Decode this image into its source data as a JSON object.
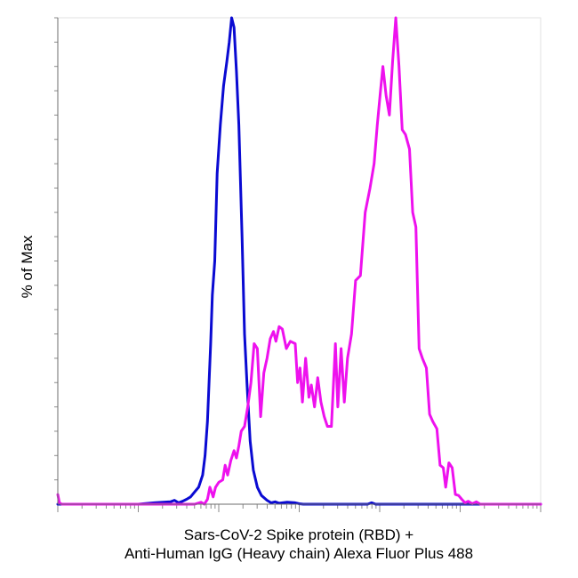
{
  "chart_data": {
    "type": "line",
    "title": "",
    "ylabel": "% of Max",
    "xlabel": [
      "Sars-CoV-2 Spike protein (RBD) +",
      "Anti-Human IgG (Heavy chain) Alexa Fluor Plus 488"
    ],
    "x_scale": "log",
    "x_decades": 6,
    "ylim": [
      0,
      100
    ],
    "grid": false,
    "legend": "none",
    "series": [
      {
        "color": "#0a0ad2",
        "stroke_width": 3,
        "points": [
          [
            0.0,
            0
          ],
          [
            1.0,
            0
          ],
          [
            1.2,
            0.3
          ],
          [
            1.4,
            0.5
          ],
          [
            1.45,
            0.8
          ],
          [
            1.5,
            0.3
          ],
          [
            1.55,
            0.6
          ],
          [
            1.6,
            1.0
          ],
          [
            1.65,
            1.5
          ],
          [
            1.7,
            2.5
          ],
          [
            1.75,
            3.5
          ],
          [
            1.8,
            6.0
          ],
          [
            1.83,
            10.0
          ],
          [
            1.86,
            17.0
          ],
          [
            1.9,
            33.0
          ],
          [
            1.92,
            43.0
          ],
          [
            1.95,
            50.0
          ],
          [
            1.98,
            68.0
          ],
          [
            2.02,
            78.0
          ],
          [
            2.06,
            86.0
          ],
          [
            2.1,
            91.0
          ],
          [
            2.13,
            95.0
          ],
          [
            2.16,
            100.0
          ],
          [
            2.19,
            98.0
          ],
          [
            2.22,
            89.0
          ],
          [
            2.25,
            78.0
          ],
          [
            2.29,
            55.0
          ],
          [
            2.32,
            35.0
          ],
          [
            2.35,
            25.0
          ],
          [
            2.39,
            13.0
          ],
          [
            2.43,
            7.0
          ],
          [
            2.48,
            3.5
          ],
          [
            2.53,
            1.8
          ],
          [
            2.6,
            0.8
          ],
          [
            2.65,
            0.3
          ],
          [
            2.7,
            0.5
          ],
          [
            2.75,
            0.2
          ],
          [
            2.85,
            0.4
          ],
          [
            2.95,
            0.3
          ],
          [
            3.0,
            0.1
          ],
          [
            3.05,
            0
          ],
          [
            3.85,
            0
          ],
          [
            3.9,
            0.3
          ],
          [
            3.95,
            0
          ],
          [
            6.0,
            0
          ]
        ]
      },
      {
        "color": "#ee11ee",
        "stroke_width": 3,
        "points": [
          [
            0.0,
            2.0
          ],
          [
            0.02,
            0.3
          ],
          [
            0.05,
            0
          ],
          [
            1.7,
            0
          ],
          [
            1.78,
            0.4
          ],
          [
            1.82,
            0
          ],
          [
            1.86,
            1.0
          ],
          [
            1.89,
            3.5
          ],
          [
            1.91,
            2.5
          ],
          [
            1.93,
            1.5
          ],
          [
            1.96,
            3.5
          ],
          [
            2.0,
            4.5
          ],
          [
            2.05,
            5.0
          ],
          [
            2.08,
            8.0
          ],
          [
            2.11,
            6.0
          ],
          [
            2.15,
            9.0
          ],
          [
            2.19,
            11.0
          ],
          [
            2.22,
            9.5
          ],
          [
            2.25,
            12.0
          ],
          [
            2.28,
            15.0
          ],
          [
            2.32,
            16.0
          ],
          [
            2.36,
            20.0
          ],
          [
            2.4,
            25.0
          ],
          [
            2.44,
            33.0
          ],
          [
            2.48,
            32.0
          ],
          [
            2.52,
            18.0
          ],
          [
            2.56,
            27.0
          ],
          [
            2.6,
            30.0
          ],
          [
            2.64,
            34.0
          ],
          [
            2.68,
            35.5
          ],
          [
            2.71,
            33.5
          ],
          [
            2.75,
            36.5
          ],
          [
            2.79,
            36.0
          ],
          [
            2.84,
            32.0
          ],
          [
            2.89,
            33.5
          ],
          [
            2.95,
            33.0
          ],
          [
            2.98,
            25.0
          ],
          [
            3.01,
            28.0
          ],
          [
            3.04,
            21.0
          ],
          [
            3.08,
            30.0
          ],
          [
            3.12,
            22.0
          ],
          [
            3.15,
            24.5
          ],
          [
            3.19,
            20.0
          ],
          [
            3.23,
            26.0
          ],
          [
            3.27,
            21.0
          ],
          [
            3.31,
            18.0
          ],
          [
            3.35,
            16.0
          ],
          [
            3.4,
            16.0
          ],
          [
            3.45,
            33.0
          ],
          [
            3.48,
            20.0
          ],
          [
            3.52,
            32.0
          ],
          [
            3.56,
            21.0
          ],
          [
            3.6,
            30.0
          ],
          [
            3.65,
            35.0
          ],
          [
            3.7,
            46.0
          ],
          [
            3.76,
            47.0
          ],
          [
            3.82,
            60.0
          ],
          [
            3.88,
            65.0
          ],
          [
            3.93,
            70.0
          ],
          [
            3.97,
            78.0
          ],
          [
            4.01,
            85.0
          ],
          [
            4.04,
            90.0
          ],
          [
            4.08,
            84.0
          ],
          [
            4.12,
            80.0
          ],
          [
            4.16,
            91.0
          ],
          [
            4.2,
            100.0
          ],
          [
            4.24,
            90.0
          ],
          [
            4.28,
            77.0
          ],
          [
            4.32,
            76.0
          ],
          [
            4.37,
            73.0
          ],
          [
            4.41,
            60.0
          ],
          [
            4.45,
            57.0
          ],
          [
            4.49,
            32.0
          ],
          [
            4.53,
            30.0
          ],
          [
            4.58,
            28.0
          ],
          [
            4.62,
            18.5
          ],
          [
            4.66,
            17.0
          ],
          [
            4.71,
            15.5
          ],
          [
            4.75,
            8.0
          ],
          [
            4.79,
            7.5
          ],
          [
            4.82,
            3.5
          ],
          [
            4.86,
            8.5
          ],
          [
            4.9,
            7.5
          ],
          [
            4.94,
            2.0
          ],
          [
            4.98,
            1.8
          ],
          [
            5.02,
            1.0
          ],
          [
            5.06,
            0.3
          ],
          [
            5.1,
            0.6
          ],
          [
            5.15,
            0.1
          ],
          [
            5.2,
            0.5
          ],
          [
            5.25,
            0
          ],
          [
            6.0,
            0
          ]
        ]
      }
    ]
  }
}
